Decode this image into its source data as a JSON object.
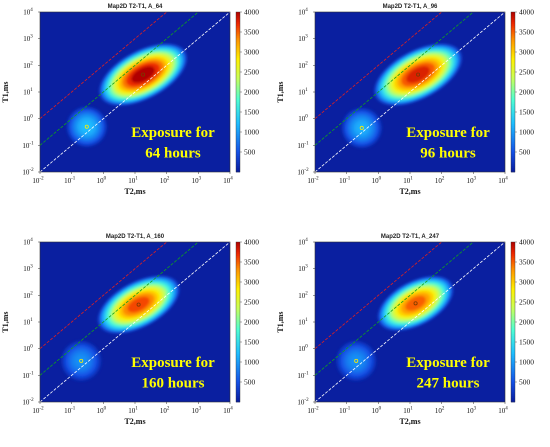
{
  "colors": {
    "background": "#0a1fa0",
    "line_red": "#e02020",
    "line_green": "#10a020",
    "line_white": "#ffffff",
    "annotation": "#ffff00"
  },
  "colorbar": {
    "min": 0,
    "max": 4000,
    "ticks": [
      "500",
      "1000",
      "1500",
      "2000",
      "2500",
      "3000",
      "3500",
      "4000"
    ],
    "tick_values": [
      500,
      1000,
      1500,
      2000,
      2500,
      3000,
      3500,
      4000
    ]
  },
  "chart_data": [
    {
      "type": "heatmap",
      "title": "Map2D T2-T1,   A_64",
      "xlabel": "T2,ms",
      "ylabel": "T1,ms",
      "xscale": "log",
      "yscale": "log",
      "xlim": [
        0.01,
        10000
      ],
      "ylim": [
        0.01,
        10000
      ],
      "x_ticks": [
        "10",
        "10",
        "10",
        "10",
        "10",
        "10",
        "10"
      ],
      "x_ticks_exp": [
        "-2",
        "-1",
        "0",
        "1",
        "2",
        "3",
        "4"
      ],
      "y_ticks": [
        "10",
        "10",
        "10",
        "10",
        "10",
        "10",
        "10"
      ],
      "y_ticks_exp": [
        "-2",
        "-1",
        "0",
        "1",
        "2",
        "3",
        "4"
      ],
      "annotation_line1": "Exposure for",
      "annotation_line2": "64 hours",
      "peaks": [
        {
          "t2": 18,
          "t1": 45,
          "intensity": 4000,
          "sx": 0.7,
          "sy": 0.35
        },
        {
          "t2": 0.3,
          "t1": 0.5,
          "intensity": 1200,
          "sx": 0.3,
          "sy": 0.3
        }
      ],
      "reference_lines": [
        {
          "color": "red",
          "ratio": 100
        },
        {
          "color": "green",
          "ratio": 10
        },
        {
          "color": "white",
          "ratio": 1
        }
      ]
    },
    {
      "type": "heatmap",
      "title": "Map2D T2-T1,   A_96",
      "xlabel": "T2,ms",
      "ylabel": "T1,ms",
      "xscale": "log",
      "yscale": "log",
      "xlim": [
        0.01,
        10000
      ],
      "ylim": [
        0.01,
        10000
      ],
      "x_ticks": [
        "10",
        "10",
        "10",
        "10",
        "10",
        "10",
        "10"
      ],
      "x_ticks_exp": [
        "-2",
        "-1",
        "0",
        "1",
        "2",
        "3",
        "4"
      ],
      "y_ticks": [
        "10",
        "10",
        "10",
        "10",
        "10",
        "10",
        "10"
      ],
      "y_ticks_exp": [
        "-2",
        "-1",
        "0",
        "1",
        "2",
        "3",
        "4"
      ],
      "annotation_line1": "Exposure for",
      "annotation_line2": "96 hours",
      "peaks": [
        {
          "t2": 18,
          "t1": 45,
          "intensity": 3800,
          "sx": 0.7,
          "sy": 0.35
        },
        {
          "t2": 0.3,
          "t1": 0.45,
          "intensity": 1100,
          "sx": 0.3,
          "sy": 0.3
        }
      ],
      "reference_lines": [
        {
          "color": "red",
          "ratio": 100
        },
        {
          "color": "green",
          "ratio": 10
        },
        {
          "color": "white",
          "ratio": 1
        }
      ]
    },
    {
      "type": "heatmap",
      "title": "Map2D T2-T1,   A_160",
      "xlabel": "T2,ms",
      "ylabel": "T1,ms",
      "xscale": "log",
      "yscale": "log",
      "xlim": [
        0.01,
        10000
      ],
      "ylim": [
        0.01,
        10000
      ],
      "x_ticks": [
        "10",
        "10",
        "10",
        "10",
        "10",
        "10",
        "10"
      ],
      "x_ticks_exp": [
        "-2",
        "-1",
        "0",
        "1",
        "2",
        "3",
        "4"
      ],
      "y_ticks": [
        "10",
        "10",
        "10",
        "10",
        "10",
        "10",
        "10"
      ],
      "y_ticks_exp": [
        "-2",
        "-1",
        "0",
        "1",
        "2",
        "3",
        "4"
      ],
      "annotation_line1": "Exposure for",
      "annotation_line2": "160 hours",
      "peaks": [
        {
          "t2": 13,
          "t1": 45,
          "intensity": 3600,
          "sx": 0.65,
          "sy": 0.33
        },
        {
          "t2": 0.2,
          "t1": 0.35,
          "intensity": 900,
          "sx": 0.3,
          "sy": 0.3
        }
      ],
      "reference_lines": [
        {
          "color": "red",
          "ratio": 100
        },
        {
          "color": "green",
          "ratio": 10
        },
        {
          "color": "white",
          "ratio": 1
        }
      ]
    },
    {
      "type": "heatmap",
      "title": "Map2D T2-T1,   A_247",
      "xlabel": "T2,ms",
      "ylabel": "T1,ms",
      "xscale": "log",
      "yscale": "log",
      "xlim": [
        0.01,
        10000
      ],
      "ylim": [
        0.01,
        10000
      ],
      "x_ticks": [
        "10",
        "10",
        "10",
        "10",
        "10",
        "10",
        "10"
      ],
      "x_ticks_exp": [
        "-2",
        "-1",
        "0",
        "1",
        "2",
        "3",
        "4"
      ],
      "y_ticks": [
        "10",
        "10",
        "10",
        "10",
        "10",
        "10",
        "10"
      ],
      "y_ticks_exp": [
        "-2",
        "-1",
        "0",
        "1",
        "2",
        "3",
        "4"
      ],
      "annotation_line1": "Exposure for",
      "annotation_line2": "247 hours",
      "peaks": [
        {
          "t2": 15,
          "t1": 50,
          "intensity": 3500,
          "sx": 0.6,
          "sy": 0.32
        },
        {
          "t2": 0.2,
          "t1": 0.35,
          "intensity": 900,
          "sx": 0.3,
          "sy": 0.3
        }
      ],
      "reference_lines": [
        {
          "color": "red",
          "ratio": 100
        },
        {
          "color": "green",
          "ratio": 10
        },
        {
          "color": "white",
          "ratio": 1
        }
      ]
    }
  ]
}
